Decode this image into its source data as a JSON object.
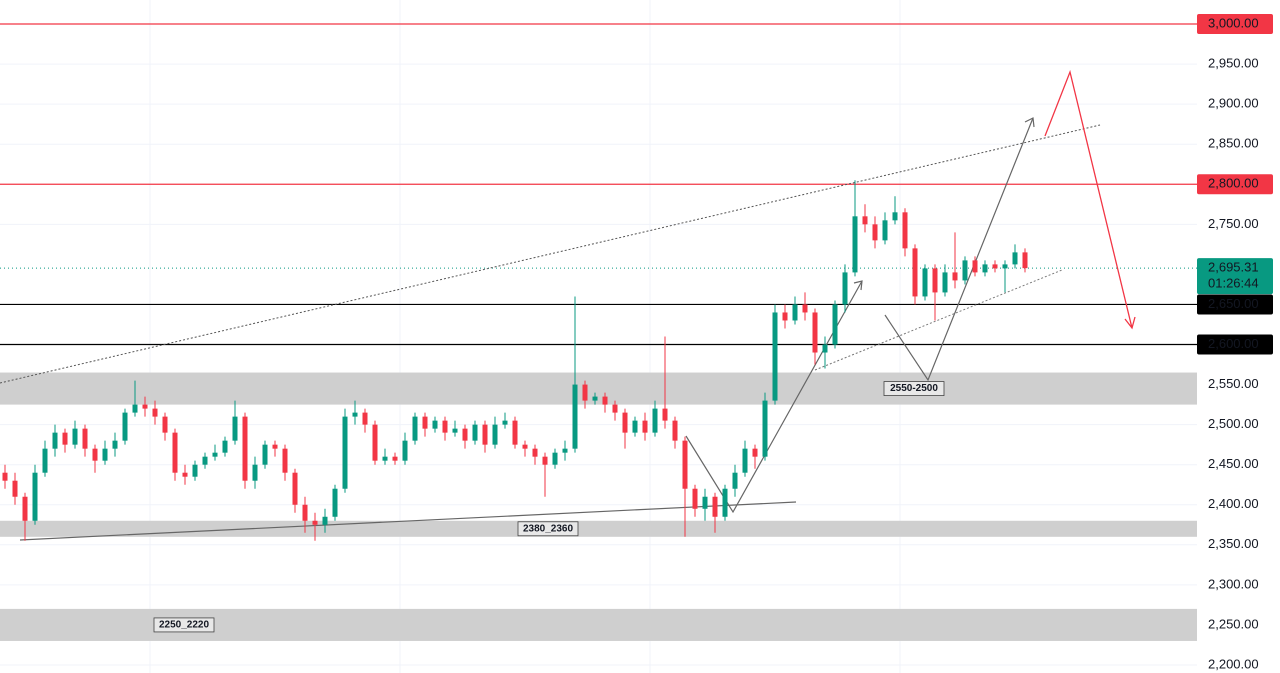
{
  "chart_data": {
    "type": "candlestick",
    "open": [
      2440,
      2430,
      2410,
      2380,
      2440,
      2470,
      2490,
      2475,
      2495,
      2470,
      2455,
      2470,
      2480,
      2515,
      2525,
      2520,
      2510,
      2490,
      2440,
      2435,
      2450,
      2460,
      2465,
      2480,
      2510,
      2430,
      2450,
      2475,
      2470,
      2440,
      2400,
      2380,
      2375,
      2385,
      2420,
      2510,
      2515,
      2500,
      2455,
      2460,
      2455,
      2480,
      2510,
      2495,
      2505,
      2490,
      2495,
      2480,
      2500,
      2475,
      2500,
      2505,
      2475,
      2470,
      2460,
      2450,
      2465,
      2470,
      2550,
      2530,
      2535,
      2525,
      2515,
      2490,
      2505,
      2490,
      2520,
      2505,
      2480,
      2420,
      2395,
      2410,
      2385,
      2420,
      2440,
      2470,
      2460,
      2530,
      2640,
      2630,
      2650,
      2640,
      2590,
      2600,
      2650,
      2690,
      2760,
      2750,
      2730,
      2755,
      2765,
      2720,
      2660,
      2695,
      2665,
      2690,
      2680,
      2705,
      2690,
      2700,
      2695,
      2700,
      2715
    ],
    "high": [
      2450,
      2440,
      2415,
      2450,
      2480,
      2500,
      2495,
      2505,
      2500,
      2475,
      2480,
      2490,
      2520,
      2555,
      2535,
      2530,
      2515,
      2495,
      2450,
      2455,
      2465,
      2475,
      2485,
      2530,
      2515,
      2460,
      2480,
      2480,
      2475,
      2445,
      2410,
      2390,
      2395,
      2425,
      2520,
      2530,
      2520,
      2505,
      2470,
      2465,
      2490,
      2515,
      2515,
      2510,
      2510,
      2505,
      2500,
      2505,
      2505,
      2510,
      2515,
      2510,
      2480,
      2475,
      2465,
      2470,
      2480,
      2660,
      2555,
      2540,
      2540,
      2530,
      2520,
      2510,
      2515,
      2530,
      2610,
      2510,
      2485,
      2425,
      2420,
      2415,
      2425,
      2450,
      2480,
      2475,
      2540,
      2650,
      2650,
      2660,
      2665,
      2645,
      2610,
      2655,
      2700,
      2805,
      2775,
      2760,
      2765,
      2785,
      2770,
      2725,
      2700,
      2700,
      2700,
      2740,
      2710,
      2710,
      2705,
      2705,
      2705,
      2725,
      2720
    ],
    "low": [
      2420,
      2400,
      2355,
      2375,
      2435,
      2460,
      2465,
      2470,
      2460,
      2440,
      2450,
      2460,
      2475,
      2510,
      2510,
      2500,
      2480,
      2430,
      2425,
      2430,
      2445,
      2455,
      2460,
      2475,
      2420,
      2420,
      2445,
      2460,
      2430,
      2390,
      2365,
      2355,
      2365,
      2380,
      2415,
      2500,
      2490,
      2450,
      2450,
      2450,
      2450,
      2475,
      2485,
      2490,
      2480,
      2485,
      2470,
      2475,
      2465,
      2470,
      2495,
      2470,
      2460,
      2450,
      2410,
      2445,
      2455,
      2465,
      2520,
      2525,
      2515,
      2505,
      2470,
      2485,
      2480,
      2485,
      2495,
      2470,
      2360,
      2385,
      2380,
      2365,
      2380,
      2410,
      2435,
      2445,
      2455,
      2525,
      2620,
      2625,
      2630,
      2575,
      2570,
      2595,
      2640,
      2685,
      2740,
      2720,
      2725,
      2750,
      2710,
      2650,
      2655,
      2630,
      2660,
      2670,
      2675,
      2685,
      2685,
      2690,
      2665,
      2695,
      2690
    ],
    "close": [
      2430,
      2410,
      2380,
      2440,
      2470,
      2490,
      2475,
      2495,
      2470,
      2455,
      2470,
      2480,
      2515,
      2525,
      2520,
      2510,
      2490,
      2440,
      2435,
      2450,
      2460,
      2465,
      2480,
      2510,
      2430,
      2450,
      2475,
      2470,
      2440,
      2400,
      2380,
      2375,
      2385,
      2420,
      2510,
      2515,
      2500,
      2455,
      2460,
      2455,
      2480,
      2510,
      2495,
      2505,
      2490,
      2495,
      2480,
      2500,
      2475,
      2500,
      2505,
      2475,
      2470,
      2460,
      2450,
      2465,
      2470,
      2550,
      2530,
      2535,
      2525,
      2515,
      2490,
      2505,
      2490,
      2520,
      2505,
      2480,
      2420,
      2395,
      2410,
      2385,
      2420,
      2440,
      2470,
      2460,
      2530,
      2640,
      2630,
      2650,
      2640,
      2590,
      2600,
      2650,
      2690,
      2760,
      2750,
      2730,
      2755,
      2765,
      2720,
      2660,
      2695,
      2665,
      2690,
      2680,
      2705,
      2690,
      2700,
      2695,
      2700,
      2715,
      2695.31
    ],
    "up_color": "#089981",
    "down_color": "#f23645",
    "ylim": [
      2190,
      3030
    ],
    "yticks": [
      {
        "value": 2950,
        "label": "2,950.00"
      },
      {
        "value": 2900,
        "label": "2,900.00"
      },
      {
        "value": 2850,
        "label": "2,850.00"
      },
      {
        "value": 2750,
        "label": "2,750.00"
      },
      {
        "value": 2550,
        "label": "2,550.00"
      },
      {
        "value": 2500,
        "label": "2,500.00"
      },
      {
        "value": 2450,
        "label": "2,450.00"
      },
      {
        "value": 2400,
        "label": "2,400.00"
      },
      {
        "value": 2350,
        "label": "2,350.00"
      },
      {
        "value": 2300,
        "label": "2,300.00"
      },
      {
        "value": 2250,
        "label": "2,250.00"
      },
      {
        "value": 2200,
        "label": "2,200.00"
      }
    ],
    "grid": true,
    "levels": [
      {
        "value": 3000,
        "label": "3,000.00",
        "color": "#f23645"
      },
      {
        "value": 2800,
        "label": "2,800.00",
        "color": "#f23645"
      },
      {
        "value": 2650,
        "label": "2,650.00",
        "color": "#000000"
      },
      {
        "value": 2600,
        "label": "2,600.00",
        "color": "#000000"
      }
    ],
    "last_price": {
      "value": 2695.31,
      "label": "2,695.31",
      "countdown": "01:26:44",
      "color": "#089981"
    },
    "zones": [
      {
        "label": "2550-2500",
        "high": 2565,
        "low": 2525
      },
      {
        "label": "2380_2360",
        "high": 2380,
        "low": 2360
      },
      {
        "label": "2250_2220",
        "high": 2270,
        "low": 2230
      }
    ]
  }
}
